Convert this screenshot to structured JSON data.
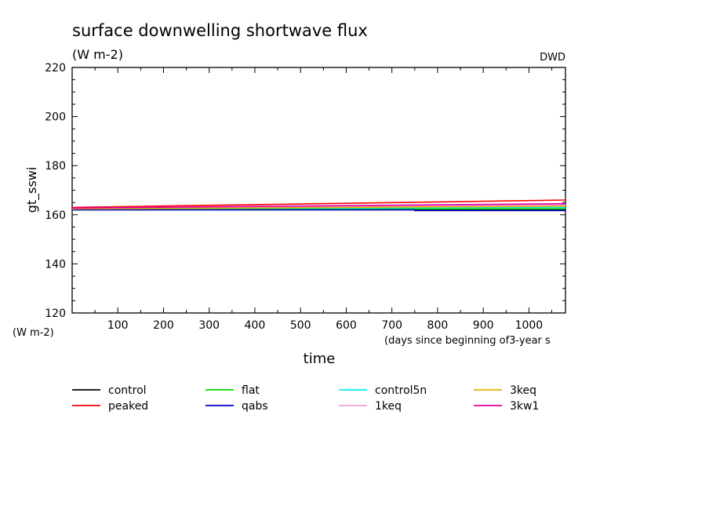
{
  "chart_data": {
    "type": "line",
    "title": "surface downwelling shortwave flux",
    "subtitle": "(W m-2)",
    "source_label": "DWD",
    "ylabel": "gt_sswi",
    "yunits": "(W m-2)",
    "xlabel": "time",
    "xunits": "(days since beginning of3-year s",
    "xlim": [
      0,
      1080
    ],
    "ylim": [
      120,
      220
    ],
    "xticks": [
      100,
      200,
      300,
      400,
      500,
      600,
      700,
      800,
      900,
      1000
    ],
    "yticks": [
      120,
      140,
      160,
      180,
      200,
      220
    ],
    "grid": false,
    "legend_position": "bottom",
    "series": [
      {
        "name": "control",
        "color": "#000000",
        "x": [
          0,
          1080
        ],
        "y": [
          162.0,
          162.0
        ]
      },
      {
        "name": "peaked",
        "color": "#ff0000",
        "x": [
          0,
          1080
        ],
        "y": [
          163.0,
          166.0
        ]
      },
      {
        "name": "flat",
        "color": "#00dd00",
        "x": [
          0,
          1080
        ],
        "y": [
          162.3,
          162.5
        ]
      },
      {
        "name": "qabs",
        "color": "#0000cc",
        "x": [
          0,
          750,
          750,
          1080
        ],
        "y": [
          162.0,
          162.0,
          161.7,
          161.7
        ]
      },
      {
        "name": "control5n",
        "color": "#00eeee",
        "x": [
          0,
          1080
        ],
        "y": [
          162.5,
          163.0
        ]
      },
      {
        "name": "1keq",
        "color": "#f0a0e0",
        "x": [
          0,
          1080
        ],
        "y": [
          162.6,
          164.0
        ]
      },
      {
        "name": "3keq",
        "color": "#e8b000",
        "x": [
          0,
          1080
        ],
        "y": [
          162.4,
          163.5
        ]
      },
      {
        "name": "3kw1",
        "color": "#dd00aa",
        "x": [
          0,
          1080
        ],
        "y": [
          162.7,
          164.5
        ]
      }
    ]
  }
}
